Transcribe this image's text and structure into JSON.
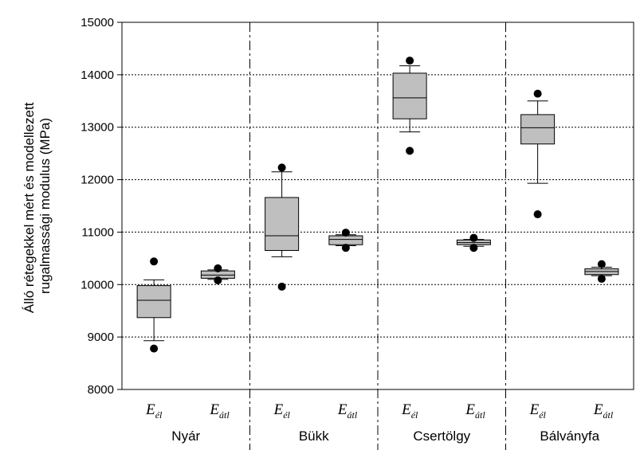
{
  "chart_data": {
    "type": "box",
    "ylabel_lines": [
      "Álló rétegekkel mért és modellezett",
      "rugalmassági modulus (MPa)"
    ],
    "ylim": [
      8000,
      15000
    ],
    "yticks": [
      8000,
      9000,
      10000,
      11000,
      12000,
      13000,
      14000,
      15000
    ],
    "grid": "horizontal dotted",
    "groups": [
      "Nyár",
      "Bükk",
      "Csertölgy",
      "Bálványfa"
    ],
    "series": [
      {
        "main": "E",
        "sub": "él"
      },
      {
        "main": "E",
        "sub": "átl"
      }
    ],
    "boxes": [
      {
        "group": "Nyár",
        "series": "él",
        "min": 8930,
        "q1": 9370,
        "median": 9700,
        "q3": 9980,
        "max": 10090,
        "outliers": [
          8780,
          10440
        ]
      },
      {
        "group": "Nyár",
        "series": "átl",
        "min": 10100,
        "q1": 10120,
        "median": 10180,
        "q3": 10260,
        "max": 10280,
        "outliers": [
          10080,
          10310
        ]
      },
      {
        "group": "Bükk",
        "series": "él",
        "min": 10530,
        "q1": 10650,
        "median": 10930,
        "q3": 11660,
        "max": 12150,
        "outliers": [
          9960,
          12230
        ]
      },
      {
        "group": "Bükk",
        "series": "átl",
        "min": 10740,
        "q1": 10760,
        "median": 10860,
        "q3": 10930,
        "max": 10950,
        "outliers": [
          10700,
          10990
        ]
      },
      {
        "group": "Csertölgy",
        "series": "él",
        "min": 12910,
        "q1": 13160,
        "median": 13560,
        "q3": 14030,
        "max": 14170,
        "outliers": [
          12550,
          14270
        ]
      },
      {
        "group": "Csertölgy",
        "series": "átl",
        "min": 10730,
        "q1": 10760,
        "median": 10800,
        "q3": 10850,
        "max": 10860,
        "outliers": [
          10700,
          10890
        ]
      },
      {
        "group": "Bálványfa",
        "series": "él",
        "min": 11930,
        "q1": 12680,
        "median": 12990,
        "q3": 13240,
        "max": 13500,
        "outliers": [
          11340,
          13640
        ]
      },
      {
        "group": "Bálványfa",
        "series": "átl",
        "min": 10170,
        "q1": 10190,
        "median": 10250,
        "q3": 10300,
        "max": 10330,
        "outliers": [
          10110,
          10390
        ]
      }
    ],
    "colors": {
      "box_fill": "#bfbfbf",
      "line": "#000000",
      "grid": "#000000",
      "outlier": "#000000"
    }
  }
}
